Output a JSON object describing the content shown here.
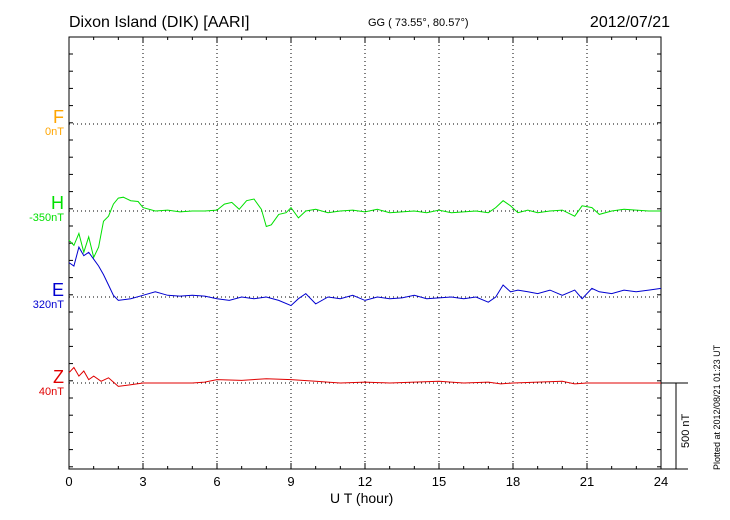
{
  "header": {
    "station": "Dixon Island (DIK)  [AARI]",
    "coords": "GG ( 73.55°,  80.57°)",
    "date": "2012/07/21"
  },
  "plotted_note": "Plotted at 2012/08/21 01:23 UT",
  "scale_label": "500 nT",
  "colors": {
    "F": "#ffa500",
    "H": "#00e000",
    "E": "#0000d0",
    "Z": "#e00000",
    "grid": "#000000"
  },
  "chart_data": {
    "type": "line",
    "title": "Dixon Island (DIK)  [AARI]",
    "xlabel": "U T (hour)",
    "ylabel": "",
    "xlim": [
      0,
      24
    ],
    "x_ticks": [
      "0",
      "3",
      "6",
      "9",
      "12",
      "15",
      "18",
      "21",
      "24"
    ],
    "grid": "dotted",
    "scale_nt": 500,
    "series": [
      {
        "name": "F",
        "baseline": "0nT",
        "values_nT": []
      },
      {
        "name": "H",
        "baseline": "-350nT",
        "x": [
          0,
          0.2,
          0.4,
          0.6,
          0.8,
          1.0,
          1.2,
          1.4,
          1.6,
          1.8,
          2.0,
          2.2,
          2.5,
          2.8,
          3.0,
          3.5,
          4.0,
          4.5,
          5.0,
          5.5,
          6.0,
          6.3,
          6.6,
          6.9,
          7.2,
          7.5,
          7.8,
          8.0,
          8.2,
          8.5,
          8.8,
          9.0,
          9.3,
          9.6,
          10.0,
          10.5,
          11.0,
          11.5,
          12.0,
          12.5,
          13.0,
          13.5,
          14.0,
          14.5,
          15.0,
          15.5,
          16.0,
          16.5,
          17.0,
          17.3,
          17.6,
          17.9,
          18.2,
          18.6,
          19.0,
          19.5,
          20.0,
          20.5,
          20.8,
          21.2,
          21.5,
          22.0,
          22.5,
          23.0,
          23.5,
          24.0
        ],
        "y": [
          -170,
          -200,
          -130,
          -240,
          -150,
          -270,
          -210,
          -60,
          -30,
          40,
          75,
          80,
          60,
          55,
          20,
          0,
          5,
          -5,
          0,
          0,
          5,
          40,
          50,
          10,
          60,
          70,
          10,
          -90,
          -80,
          -20,
          -10,
          20,
          -40,
          0,
          10,
          -10,
          0,
          5,
          -5,
          10,
          -10,
          -5,
          0,
          -10,
          5,
          -10,
          -5,
          0,
          -10,
          20,
          60,
          30,
          -10,
          5,
          -10,
          0,
          5,
          -30,
          30,
          20,
          -20,
          0,
          10,
          5,
          0,
          0
        ]
      },
      {
        "name": "E",
        "baseline": "320nT",
        "x": [
          0,
          0.2,
          0.4,
          0.6,
          0.8,
          1.0,
          1.2,
          1.4,
          1.6,
          1.8,
          2.0,
          2.5,
          3.0,
          3.5,
          4.0,
          4.5,
          5.0,
          5.5,
          6.0,
          6.5,
          7.0,
          7.5,
          8.0,
          8.5,
          9.0,
          9.3,
          9.6,
          10.0,
          10.5,
          11.0,
          11.5,
          12.0,
          12.5,
          13.0,
          13.5,
          14.0,
          14.5,
          15.0,
          15.5,
          16.0,
          16.5,
          17.0,
          17.3,
          17.6,
          17.9,
          18.2,
          18.6,
          19.0,
          19.5,
          20.0,
          20.5,
          20.8,
          21.2,
          21.5,
          22.0,
          22.5,
          23.0,
          23.5,
          24.0
        ],
        "y": [
          200,
          180,
          290,
          240,
          260,
          220,
          180,
          130,
          70,
          10,
          -20,
          -10,
          10,
          30,
          10,
          5,
          10,
          5,
          -10,
          -20,
          0,
          -10,
          0,
          -20,
          -50,
          -10,
          20,
          -40,
          0,
          -10,
          10,
          -20,
          0,
          -10,
          -5,
          10,
          -10,
          -5,
          0,
          -10,
          0,
          -30,
          0,
          70,
          30,
          40,
          30,
          20,
          40,
          10,
          40,
          -10,
          50,
          30,
          20,
          40,
          30,
          40,
          50
        ]
      },
      {
        "name": "Z",
        "baseline": "40nT",
        "x": [
          0,
          0.2,
          0.4,
          0.6,
          0.8,
          1.0,
          1.3,
          1.6,
          2.0,
          2.5,
          3.0,
          4.0,
          5.0,
          5.5,
          6.0,
          7.0,
          8.0,
          9.0,
          10.0,
          11.0,
          12.0,
          13.0,
          14.0,
          15.0,
          16.0,
          17.0,
          17.5,
          18.0,
          19.0,
          20.0,
          20.5,
          21.0,
          22.0,
          23.0,
          24.0
        ],
        "y": [
          60,
          90,
          40,
          70,
          20,
          40,
          10,
          30,
          -20,
          -10,
          0,
          0,
          0,
          5,
          20,
          15,
          25,
          20,
          10,
          0,
          5,
          0,
          5,
          10,
          0,
          5,
          -5,
          0,
          5,
          10,
          -5,
          0,
          0,
          0,
          0
        ]
      }
    ]
  }
}
